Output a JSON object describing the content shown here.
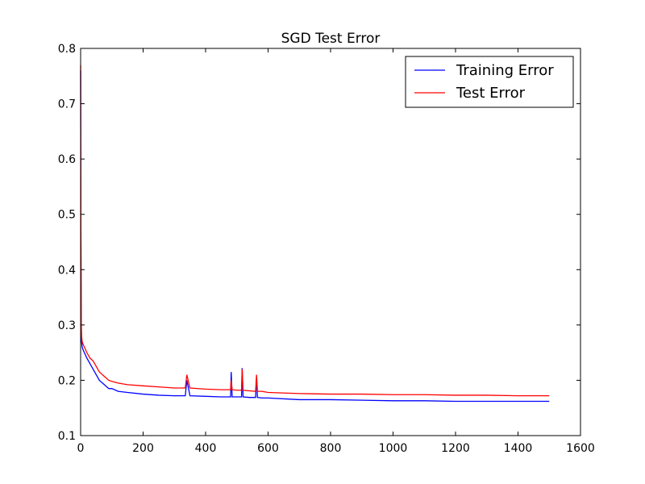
{
  "chart_data": {
    "type": "line",
    "title": "SGD Test Error",
    "xlabel": "",
    "ylabel": "",
    "xlim": [
      0,
      1600
    ],
    "ylim": [
      0.1,
      0.8
    ],
    "xticks": [
      "0",
      "200",
      "400",
      "600",
      "800",
      "1000",
      "1200",
      "1400",
      "1600"
    ],
    "yticks": [
      "0.1",
      "0.2",
      "0.3",
      "0.4",
      "0.5",
      "0.6",
      "0.7",
      "0.8"
    ],
    "grid": false,
    "legend_position": "top-right",
    "series": [
      {
        "name": "Training Error",
        "color": "#0000ff",
        "x": [
          0,
          1,
          2,
          3,
          5,
          8,
          12,
          20,
          30,
          40,
          50,
          60,
          70,
          80,
          90,
          100,
          120,
          150,
          200,
          250,
          300,
          335,
          340,
          350,
          400,
          450,
          480,
          482,
          485,
          500,
          515,
          517,
          520,
          540,
          560,
          563,
          566,
          580,
          600,
          700,
          800,
          900,
          1000,
          1100,
          1200,
          1300,
          1400,
          1500
        ],
        "y": [
          0.76,
          0.45,
          0.3,
          0.27,
          0.26,
          0.255,
          0.25,
          0.24,
          0.23,
          0.22,
          0.21,
          0.2,
          0.195,
          0.19,
          0.185,
          0.185,
          0.18,
          0.178,
          0.175,
          0.173,
          0.172,
          0.172,
          0.2,
          0.172,
          0.171,
          0.17,
          0.17,
          0.215,
          0.17,
          0.17,
          0.17,
          0.222,
          0.17,
          0.169,
          0.169,
          0.205,
          0.169,
          0.168,
          0.168,
          0.165,
          0.165,
          0.164,
          0.163,
          0.163,
          0.162,
          0.162,
          0.162,
          0.162
        ]
      },
      {
        "name": "Test Error",
        "color": "#ff0000",
        "x": [
          0,
          1,
          2,
          3,
          5,
          8,
          12,
          20,
          30,
          40,
          50,
          60,
          70,
          80,
          90,
          100,
          120,
          150,
          200,
          250,
          300,
          335,
          340,
          350,
          400,
          450,
          480,
          482,
          485,
          500,
          515,
          517,
          520,
          540,
          560,
          563,
          566,
          580,
          600,
          700,
          800,
          900,
          1000,
          1100,
          1200,
          1300,
          1400,
          1500
        ],
        "y": [
          0.77,
          0.46,
          0.31,
          0.28,
          0.27,
          0.265,
          0.26,
          0.25,
          0.24,
          0.235,
          0.225,
          0.215,
          0.21,
          0.205,
          0.2,
          0.198,
          0.195,
          0.192,
          0.19,
          0.188,
          0.186,
          0.186,
          0.21,
          0.186,
          0.184,
          0.183,
          0.183,
          0.2,
          0.183,
          0.182,
          0.182,
          0.22,
          0.182,
          0.181,
          0.18,
          0.21,
          0.18,
          0.18,
          0.178,
          0.176,
          0.175,
          0.175,
          0.174,
          0.174,
          0.173,
          0.173,
          0.172,
          0.172
        ]
      }
    ]
  }
}
